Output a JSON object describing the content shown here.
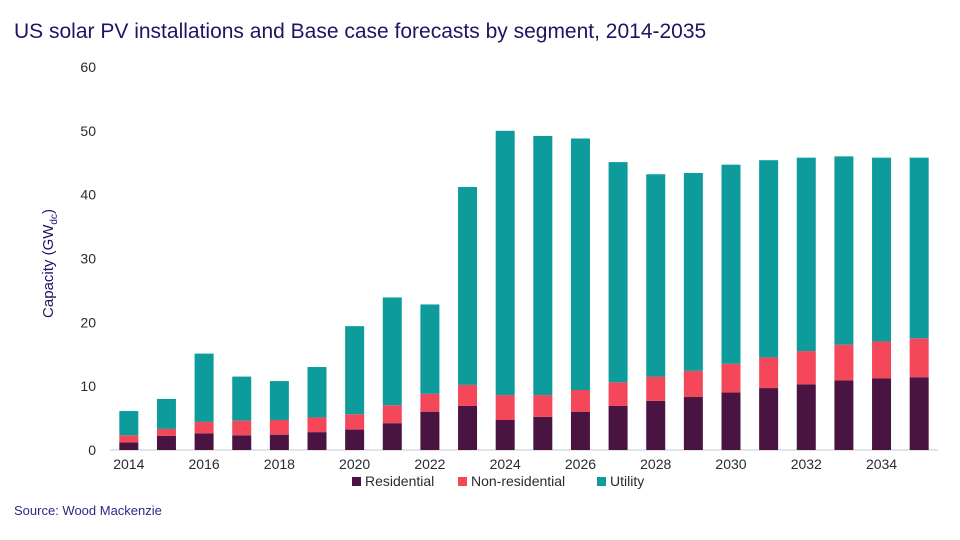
{
  "source": "Source: Wood Mackenzie",
  "chart_data": {
    "type": "bar",
    "stacked": true,
    "title": "US solar PV installations and Base case forecasts by segment, 2014-2035",
    "ylabel": "Capacity (GW",
    "ylabel_sub": "dc",
    "ylabel_close": ")",
    "xlabel": "",
    "ylim": [
      0,
      60
    ],
    "yticks": [
      "0",
      "10",
      "20",
      "30",
      "40",
      "50",
      "60"
    ],
    "categories": [
      "2014",
      "2015",
      "2016",
      "2017",
      "2018",
      "2019",
      "2020",
      "2021",
      "2022",
      "2023",
      "2024",
      "2025",
      "2026",
      "2027",
      "2028",
      "2029",
      "2030",
      "2031",
      "2032",
      "2033",
      "2034",
      "2035"
    ],
    "xtick_labels": [
      "2014",
      "",
      "2016",
      "",
      "2018",
      "",
      "2020",
      "",
      "2022",
      "",
      "2024",
      "",
      "2026",
      "",
      "2028",
      "",
      "2030",
      "",
      "2032",
      "",
      "2034",
      ""
    ],
    "series": [
      {
        "name": "Residential",
        "color": "#4a1442",
        "values": [
          1.2,
          2.2,
          2.6,
          2.3,
          2.4,
          2.8,
          3.2,
          4.2,
          6.0,
          6.9,
          4.7,
          5.2,
          6.0,
          6.9,
          7.7,
          8.3,
          9.0,
          9.7,
          10.3,
          10.9,
          11.2,
          11.4
        ]
      },
      {
        "name": "Non-residential",
        "color": "#f5475a",
        "values": [
          1.1,
          1.1,
          1.8,
          2.3,
          2.3,
          2.3,
          2.4,
          2.8,
          2.8,
          3.3,
          3.9,
          3.4,
          3.4,
          3.7,
          3.8,
          4.1,
          4.5,
          4.8,
          5.2,
          5.6,
          5.8,
          6.1
        ]
      },
      {
        "name": "Utility",
        "color": "#0e9b9c",
        "values": [
          3.8,
          4.7,
          10.7,
          6.9,
          6.1,
          7.9,
          13.8,
          16.9,
          14.0,
          31.0,
          41.4,
          40.6,
          39.4,
          34.5,
          31.7,
          31.0,
          31.2,
          30.9,
          30.3,
          29.5,
          28.8,
          28.3
        ]
      }
    ],
    "legend": {
      "placement": "bottom-center"
    },
    "grid": false
  }
}
